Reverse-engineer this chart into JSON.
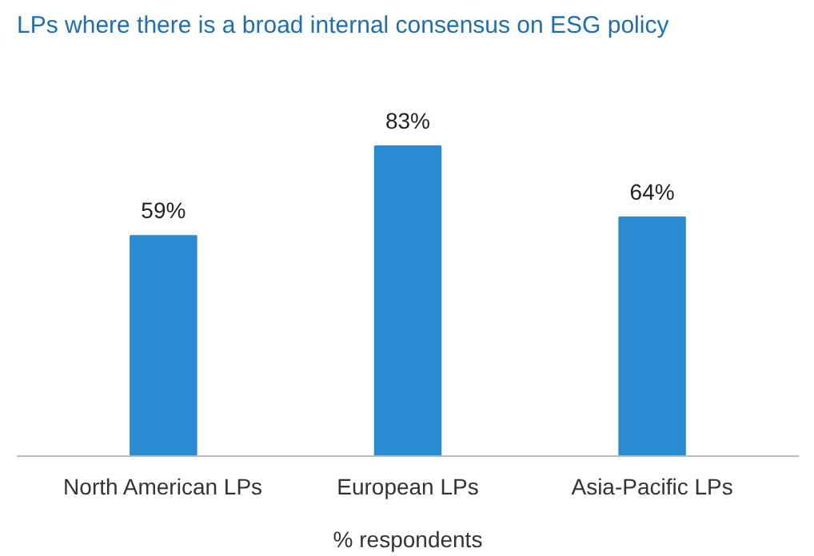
{
  "chart_data": {
    "type": "bar",
    "title": "LPs where there is a broad internal consensus on ESG policy",
    "categories": [
      "North American LPs",
      "European LPs",
      "Asia-Pacific LPs"
    ],
    "values": [
      59,
      83,
      64
    ],
    "value_labels": [
      "59%",
      "83%",
      "64%"
    ],
    "color": "#2a8bd0",
    "xlabel": "% respondents"
  }
}
